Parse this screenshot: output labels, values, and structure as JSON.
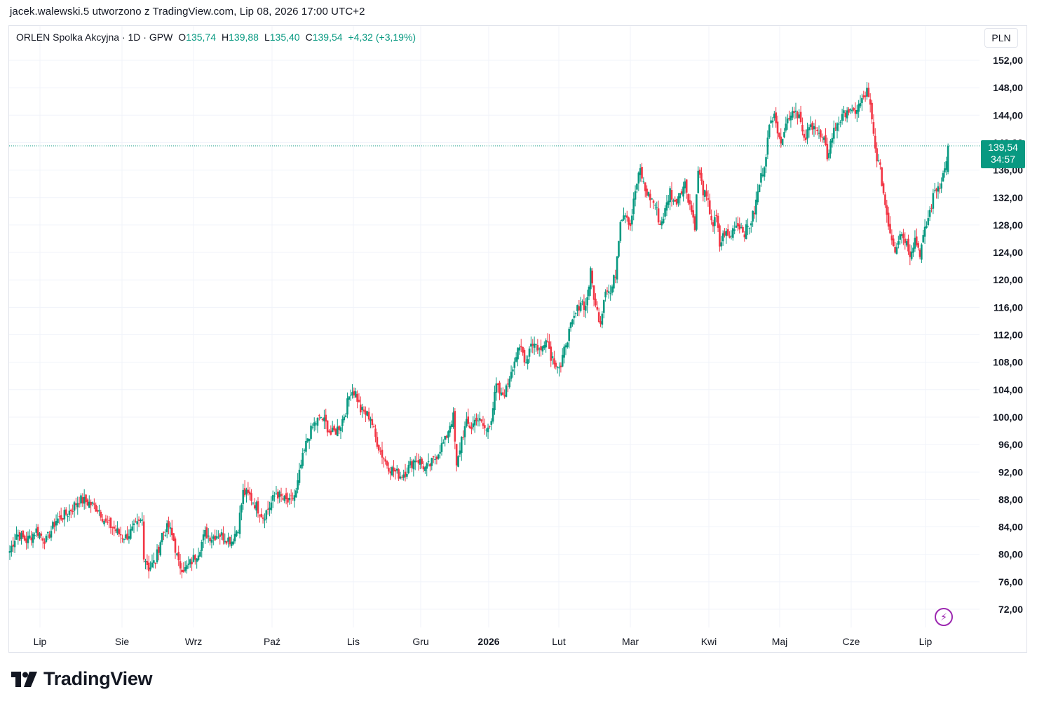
{
  "header": {
    "text": "jacek.walewski.5 utworzono z TradingView.com, Lip 08, 2026 17:00 UTC+2"
  },
  "legend": {
    "symbol": "ORLEN Spolka Akcyjna · 1D · GPW",
    "o_label": "O",
    "o_value": "135,74",
    "h_label": "H",
    "h_value": "139,88",
    "l_label": "L",
    "l_value": "135,40",
    "c_label": "C",
    "c_value": "139,54",
    "change": "+4,32 (+3,19%)"
  },
  "currency": "PLN",
  "last_price": {
    "value": "139,54",
    "countdown": "34:57"
  },
  "logo": {
    "text": "TradingView"
  },
  "colors": {
    "up": "#089981",
    "down": "#f23645",
    "grid": "#f0f3fa",
    "text": "#131722",
    "alert": "#9c27b0"
  },
  "icons": {
    "alert": "lightning-bolt-icon",
    "logo": "tradingview-logo-icon"
  },
  "chart_data": {
    "type": "candlestick",
    "ylim": [
      68,
      155
    ],
    "y_ticks": [
      "152,00",
      "148,00",
      "144,00",
      "140,00",
      "136,00",
      "132,00",
      "128,00",
      "124,00",
      "120,00",
      "116,00",
      "112,00",
      "108,00",
      "104,00",
      "100,00",
      "96,00",
      "92,00",
      "88,00",
      "84,00",
      "80,00",
      "76,00",
      "72,00"
    ],
    "x_tick_labels": [
      "Lip",
      "Sie",
      "Wrz",
      "Paź",
      "Lis",
      "Gru",
      "2026",
      "Lut",
      "Mar",
      "Kwi",
      "Maj",
      "Cze",
      "Lip"
    ],
    "last_close": 139.54,
    "close_path": [
      [
        0,
        80.5
      ],
      [
        4,
        83
      ],
      [
        10,
        82
      ],
      [
        16,
        83.5
      ],
      [
        22,
        82
      ],
      [
        28,
        85
      ],
      [
        35,
        86
      ],
      [
        42,
        88
      ],
      [
        48,
        87.5
      ],
      [
        54,
        86.5
      ],
      [
        58,
        84.5
      ],
      [
        62,
        84
      ],
      [
        66,
        83
      ],
      [
        70,
        82.5
      ],
      [
        74,
        83.5
      ],
      [
        78,
        84.5
      ],
      [
        80,
        85
      ],
      [
        81,
        80
      ],
      [
        84,
        78
      ],
      [
        88,
        79
      ],
      [
        92,
        83
      ],
      [
        96,
        84
      ],
      [
        99,
        82
      ],
      [
        102,
        78.5
      ],
      [
        106,
        77.8
      ],
      [
        110,
        79
      ],
      [
        114,
        80.5
      ],
      [
        118,
        83
      ],
      [
        122,
        82.5
      ],
      [
        126,
        83
      ],
      [
        130,
        82.5
      ],
      [
        134,
        82
      ],
      [
        138,
        84
      ],
      [
        141,
        89
      ],
      [
        145,
        88.5
      ],
      [
        149,
        87
      ],
      [
        153,
        85.5
      ],
      [
        157,
        87
      ],
      [
        161,
        89
      ],
      [
        165,
        88
      ],
      [
        169,
        87.5
      ],
      [
        173,
        89
      ],
      [
        176,
        93
      ],
      [
        180,
        97
      ],
      [
        184,
        99
      ],
      [
        188,
        100
      ],
      [
        191,
        99
      ],
      [
        194,
        97.5
      ],
      [
        197,
        98
      ],
      [
        200,
        99
      ],
      [
        203,
        101
      ],
      [
        206,
        104
      ],
      [
        209,
        103.5
      ],
      [
        212,
        101
      ],
      [
        215,
        100.5
      ],
      [
        218,
        100
      ],
      [
        221,
        97
      ],
      [
        224,
        95
      ],
      [
        227,
        93.5
      ],
      [
        230,
        92.5
      ],
      [
        233,
        92
      ],
      [
        236,
        91.5
      ],
      [
        239,
        92
      ],
      [
        242,
        93
      ],
      [
        245,
        94
      ],
      [
        248,
        93.5
      ],
      [
        251,
        92.5
      ],
      [
        254,
        93
      ],
      [
        257,
        94
      ],
      [
        260,
        95.5
      ],
      [
        263,
        96.5
      ],
      [
        266,
        99
      ],
      [
        268,
        100
      ],
      [
        270,
        92.5
      ],
      [
        273,
        97
      ],
      [
        276,
        99
      ],
      [
        279,
        98.5
      ],
      [
        282,
        100
      ],
      [
        285,
        99
      ],
      [
        288,
        98
      ],
      [
        291,
        100
      ],
      [
        294,
        104.5
      ],
      [
        297,
        103
      ],
      [
        300,
        104
      ],
      [
        303,
        107
      ],
      [
        306,
        109
      ],
      [
        309,
        110
      ],
      [
        312,
        108
      ],
      [
        315,
        111
      ],
      [
        318,
        110.5
      ],
      [
        321,
        109.5
      ],
      [
        324,
        112
      ],
      [
        327,
        109
      ],
      [
        330,
        108
      ],
      [
        333,
        107
      ],
      [
        336,
        111
      ],
      [
        339,
        113
      ],
      [
        342,
        115
      ],
      [
        345,
        117
      ],
      [
        348,
        116
      ],
      [
        351,
        121
      ],
      [
        354,
        116
      ],
      [
        357,
        114
      ],
      [
        360,
        119
      ],
      [
        363,
        118
      ],
      [
        366,
        121
      ],
      [
        369,
        129
      ],
      [
        372,
        130
      ],
      [
        375,
        128
      ],
      [
        378,
        133
      ],
      [
        381,
        136
      ],
      [
        384,
        133
      ],
      [
        387,
        132
      ],
      [
        390,
        131
      ],
      [
        393,
        128
      ],
      [
        396,
        130
      ],
      [
        399,
        133
      ],
      [
        402,
        131
      ],
      [
        405,
        133
      ],
      [
        408,
        134
      ],
      [
        411,
        131
      ],
      [
        414,
        128
      ],
      [
        416,
        136
      ],
      [
        419,
        133
      ],
      [
        422,
        131
      ],
      [
        425,
        128
      ],
      [
        427,
        129
      ],
      [
        429,
        125
      ],
      [
        432,
        127
      ],
      [
        435,
        126
      ],
      [
        438,
        128
      ],
      [
        441,
        128
      ],
      [
        444,
        127
      ],
      [
        447,
        128
      ],
      [
        450,
        130
      ],
      [
        453,
        134
      ],
      [
        456,
        137
      ],
      [
        459,
        142
      ],
      [
        462,
        145
      ],
      [
        465,
        140
      ],
      [
        468,
        142
      ],
      [
        471,
        144
      ],
      [
        474,
        145
      ],
      [
        477,
        144
      ],
      [
        480,
        140
      ],
      [
        483,
        142
      ],
      [
        486,
        143
      ],
      [
        489,
        141
      ],
      [
        492,
        140
      ],
      [
        494,
        138
      ],
      [
        497,
        141
      ],
      [
        500,
        143
      ],
      [
        503,
        143.5
      ],
      [
        506,
        145
      ],
      [
        509,
        144
      ],
      [
        512,
        145
      ],
      [
        515,
        146
      ],
      [
        518,
        147.5
      ],
      [
        520,
        145
      ],
      [
        523,
        139
      ],
      [
        526,
        136
      ],
      [
        529,
        131
      ],
      [
        532,
        127
      ],
      [
        535,
        124.5
      ],
      [
        538,
        127
      ],
      [
        541,
        126
      ],
      [
        544,
        124
      ],
      [
        547,
        126
      ],
      [
        550,
        124
      ],
      [
        553,
        127
      ],
      [
        556,
        130
      ],
      [
        559,
        133
      ],
      [
        562,
        134
      ],
      [
        565,
        136
      ],
      [
        567,
        139.54
      ]
    ]
  }
}
